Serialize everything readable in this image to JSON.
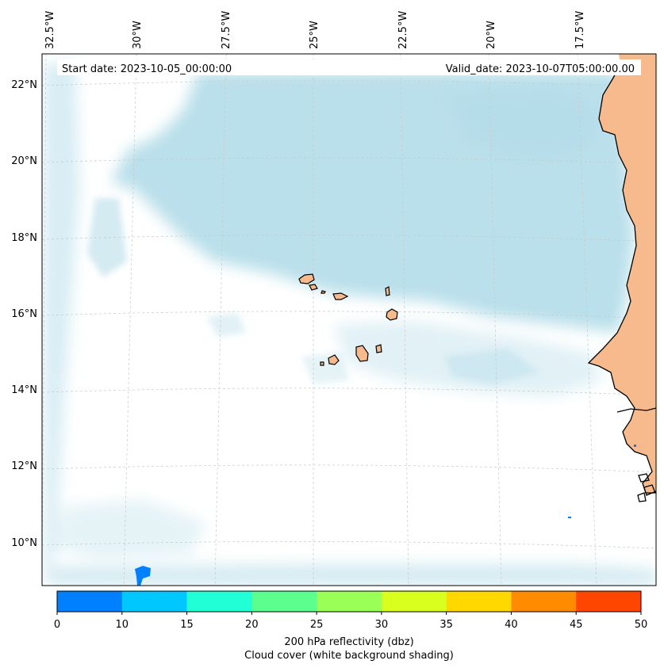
{
  "map": {
    "start_date": "Start date: 2023-10-05_00:00:00",
    "valid_date": "Valid_date: 2023-10-07T05:00:00.00",
    "lon_labels": [
      "32.5°W",
      "30°W",
      "27.5°W",
      "25°W",
      "22.5°W",
      "20°W",
      "17.5°W"
    ],
    "lat_labels": [
      "22°N",
      "20°N",
      "18°N",
      "16°N",
      "14°N",
      "12°N",
      "10°N"
    ],
    "land_color": "#f6ba8c",
    "cloud_color": "#a9d8e6",
    "coast_color": "#000000"
  },
  "colorbar": {
    "label_line1": "200 hPa reflectivity (dbz)",
    "label_line2": "Cloud cover (white background shading)",
    "ticks": [
      "0",
      "10",
      "15",
      "20",
      "25",
      "30",
      "35",
      "40",
      "45",
      "50"
    ],
    "colors": [
      "#0080ff",
      "#00c8ff",
      "#21ffd6",
      "#5cff8e",
      "#9aff57",
      "#d8ff1e",
      "#ffd800",
      "#ff8b00",
      "#ff4600"
    ]
  }
}
